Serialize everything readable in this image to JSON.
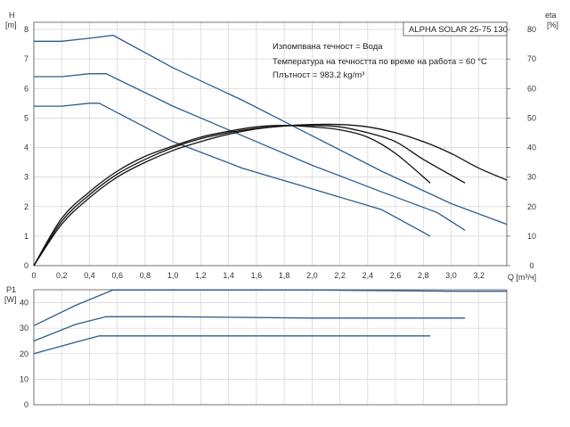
{
  "model_label": "ALPHA SOLAR 25-75  130",
  "info_lines": [
    "Изпомпвана течност = Вода",
    "Температура на течността по време на работа = 60 °C",
    "Плътност = 983.2 kg/m³"
  ],
  "chart_data": [
    {
      "type": "line",
      "title": "",
      "xlabel": "Q [m³/ч]",
      "ylabel_left_name": "H",
      "ylabel_left_unit": "[m]",
      "ylabel_right_name": "eta",
      "ylabel_right_unit": "[%]",
      "xlim": [
        0,
        3.4
      ],
      "ylim_left": [
        0,
        8
      ],
      "ylim_right": [
        0,
        80
      ],
      "x_ticks": [
        "0",
        "0,2",
        "0,4",
        "0,6",
        "0,8",
        "1,0",
        "1,2",
        "1,4",
        "1,6",
        "1,8",
        "2,0",
        "2,2",
        "2,4",
        "2,6",
        "2,8",
        "3,0",
        "3,2"
      ],
      "x_tick_values": [
        0,
        0.2,
        0.4,
        0.6,
        0.8,
        1.0,
        1.2,
        1.4,
        1.6,
        1.8,
        2.0,
        2.2,
        2.4,
        2.6,
        2.8,
        3.0,
        3.2
      ],
      "y_ticks_left": [
        "0",
        "1",
        "2",
        "3",
        "4",
        "5",
        "6",
        "7",
        "8"
      ],
      "y_ticks_right": [
        "0",
        "10",
        "20",
        "30",
        "40",
        "50",
        "60",
        "70",
        "80"
      ],
      "grid": true,
      "series_color_head": "#2b5d8e",
      "series_color_eta": "#111111",
      "series": [
        {
          "kind": "head",
          "axis": "left",
          "points": [
            [
              0,
              7.6
            ],
            [
              0.2,
              7.6
            ],
            [
              0.4,
              7.7
            ],
            [
              0.57,
              7.8
            ],
            [
              1.0,
              6.7
            ],
            [
              1.5,
              5.6
            ],
            [
              2.0,
              4.4
            ],
            [
              2.5,
              3.2
            ],
            [
              3.0,
              2.1
            ],
            [
              3.4,
              1.4
            ]
          ]
        },
        {
          "kind": "head",
          "axis": "left",
          "points": [
            [
              0,
              6.4
            ],
            [
              0.2,
              6.4
            ],
            [
              0.4,
              6.5
            ],
            [
              0.52,
              6.5
            ],
            [
              1.0,
              5.4
            ],
            [
              1.5,
              4.4
            ],
            [
              2.0,
              3.4
            ],
            [
              2.5,
              2.5
            ],
            [
              2.9,
              1.8
            ],
            [
              3.1,
              1.2
            ]
          ]
        },
        {
          "kind": "head",
          "axis": "left",
          "points": [
            [
              0,
              5.4
            ],
            [
              0.2,
              5.4
            ],
            [
              0.4,
              5.5
            ],
            [
              0.47,
              5.5
            ],
            [
              1.0,
              4.2
            ],
            [
              1.5,
              3.3
            ],
            [
              2.0,
              2.6
            ],
            [
              2.5,
              1.9
            ],
            [
              2.85,
              1.0
            ]
          ]
        },
        {
          "kind": "eta",
          "axis": "right",
          "points": [
            [
              0,
              0
            ],
            [
              0.2,
              16
            ],
            [
              0.4,
              25
            ],
            [
              0.6,
              32
            ],
            [
              0.8,
              37
            ],
            [
              1.0,
              40.5
            ],
            [
              1.2,
              43.5
            ],
            [
              1.4,
              45.5
            ],
            [
              1.6,
              47
            ],
            [
              1.8,
              47.5
            ],
            [
              2.0,
              47
            ],
            [
              2.2,
              46
            ],
            [
              2.4,
              43.5
            ],
            [
              2.6,
              38
            ],
            [
              2.85,
              28
            ]
          ]
        },
        {
          "kind": "eta",
          "axis": "right",
          "points": [
            [
              0,
              0
            ],
            [
              0.2,
              15
            ],
            [
              0.4,
              24
            ],
            [
              0.6,
              31
            ],
            [
              0.8,
              36
            ],
            [
              1.0,
              40
            ],
            [
              1.2,
              43
            ],
            [
              1.4,
              45
            ],
            [
              1.6,
              46.5
            ],
            [
              1.8,
              47.3
            ],
            [
              2.0,
              47.5
            ],
            [
              2.2,
              47
            ],
            [
              2.4,
              45
            ],
            [
              2.6,
              42
            ],
            [
              2.8,
              36
            ],
            [
              3.1,
              28
            ]
          ]
        },
        {
          "kind": "eta",
          "axis": "right",
          "points": [
            [
              0,
              0
            ],
            [
              0.2,
              14
            ],
            [
              0.4,
              23
            ],
            [
              0.6,
              30
            ],
            [
              0.8,
              35
            ],
            [
              1.0,
              39
            ],
            [
              1.2,
              42
            ],
            [
              1.4,
              44.5
            ],
            [
              1.6,
              46.3
            ],
            [
              1.8,
              47.3
            ],
            [
              2.0,
              47.8
            ],
            [
              2.2,
              47.8
            ],
            [
              2.4,
              47
            ],
            [
              2.6,
              45
            ],
            [
              2.8,
              42
            ],
            [
              3.0,
              38
            ],
            [
              3.2,
              33
            ],
            [
              3.4,
              29
            ]
          ]
        }
      ]
    },
    {
      "type": "line",
      "title": "",
      "ylabel_name": "P1",
      "ylabel_unit": "[W]",
      "xlim": [
        0,
        3.4
      ],
      "ylim": [
        0,
        50
      ],
      "y_ticks": [
        "0",
        "10",
        "20",
        "30",
        "40"
      ],
      "grid": true,
      "series_color": "#2b5d8e",
      "series": [
        {
          "points": [
            [
              0,
              31
            ],
            [
              0.3,
              39
            ],
            [
              0.57,
              45
            ],
            [
              1.0,
              45
            ],
            [
              2.0,
              45
            ],
            [
              3.0,
              44.5
            ],
            [
              3.4,
              44.5
            ]
          ]
        },
        {
          "points": [
            [
              0,
              25
            ],
            [
              0.3,
              31.5
            ],
            [
              0.52,
              34.5
            ],
            [
              1.0,
              34.5
            ],
            [
              2.0,
              34
            ],
            [
              3.1,
              34
            ]
          ]
        },
        {
          "points": [
            [
              0,
              20
            ],
            [
              0.3,
              24.5
            ],
            [
              0.47,
              27
            ],
            [
              1.0,
              27
            ],
            [
              2.0,
              27
            ],
            [
              2.85,
              27
            ]
          ]
        }
      ]
    }
  ]
}
